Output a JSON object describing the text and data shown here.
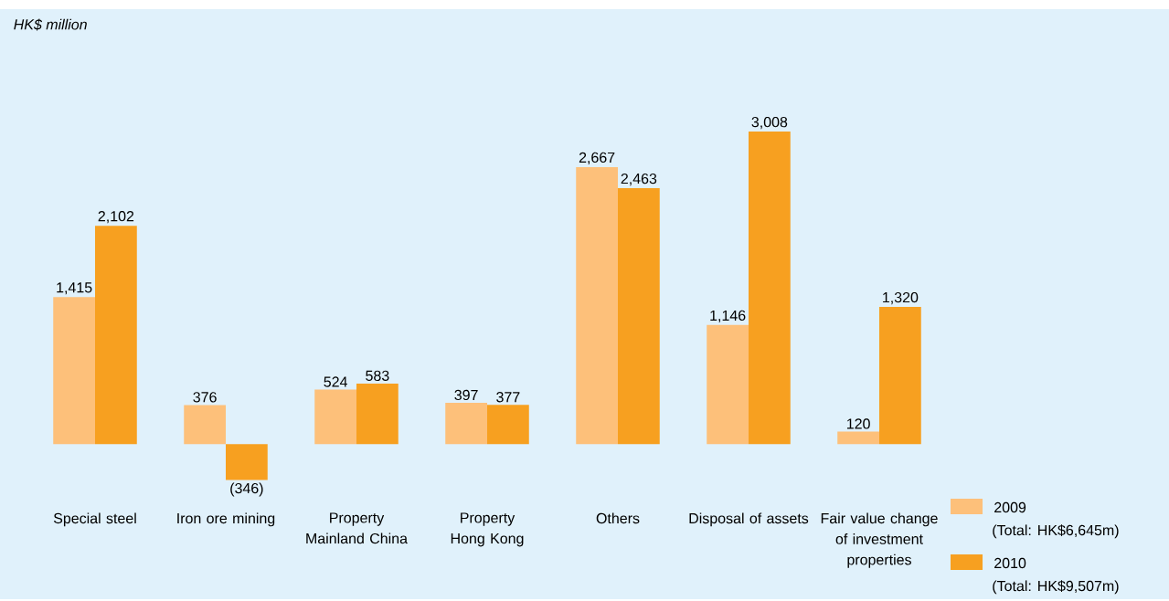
{
  "chart_data": {
    "type": "bar",
    "categories": [
      "Special steel",
      "Iron ore mining",
      "Property Mainland China",
      "Property Hong Kong",
      "Others",
      "Disposal of assets",
      "Fair value change of investment properties"
    ],
    "series": [
      {
        "name": "2009",
        "color": "#fdc07a",
        "values": [
          1415,
          376,
          524,
          397,
          2667,
          1146,
          120
        ],
        "value_labels": [
          "1,415",
          "376",
          "524",
          "397",
          "2,667",
          "1,146",
          "120"
        ]
      },
      {
        "name": "2010",
        "color": "#f7a020",
        "values": [
          2102,
          -346,
          583,
          377,
          2463,
          3008,
          1320
        ],
        "value_labels": [
          "2,102",
          "(346)",
          "583",
          "377",
          "2,463",
          "3,008",
          "1,320"
        ]
      }
    ],
    "legend": "bottom right",
    "annotations": [
      "HK$ million",
      "(Total: HK$6,645m)",
      "(Total: HK$9,507m)"
    ]
  }
}
